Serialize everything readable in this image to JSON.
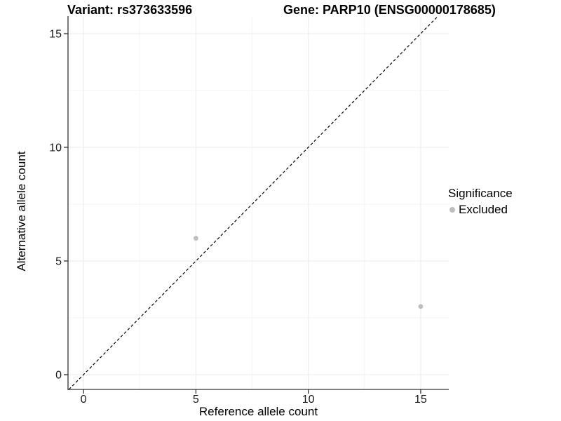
{
  "chart_data": {
    "type": "scatter",
    "titles": {
      "left": "Variant: rs373633596",
      "right": "Gene: PARP10 (ENSG00000178685)"
    },
    "xlabel": "Reference allele count",
    "ylabel": "Alternative allele count",
    "xticks": [
      0,
      5,
      10,
      15
    ],
    "yticks": [
      0,
      5,
      10,
      15
    ],
    "xlim": [
      -0.69,
      16.25
    ],
    "ylim": [
      -0.65,
      15.77
    ],
    "minor_gridlines_x": [
      2.5,
      7.5,
      12.5
    ],
    "minor_gridlines_y": [
      2.5,
      7.5,
      12.5
    ],
    "grid": true,
    "reference_line": {
      "type": "identity y=x",
      "style": "dashed",
      "color": "#000000"
    },
    "series": [
      {
        "name": "Excluded",
        "color": "#bebebe",
        "points": [
          {
            "x": 5,
            "y": 6
          },
          {
            "x": 15,
            "y": 3
          }
        ]
      }
    ],
    "legend": {
      "title": "Significance",
      "position": "right",
      "items": [
        {
          "label": "Excluded",
          "color": "#bebebe",
          "marker": "circle"
        }
      ]
    },
    "colors": {
      "grid_major": "#ebebeb",
      "grid_minor": "#f5f5f5",
      "axis": "#333333",
      "point": "#bebebe",
      "text": "#000000",
      "background": "#ffffff"
    }
  }
}
